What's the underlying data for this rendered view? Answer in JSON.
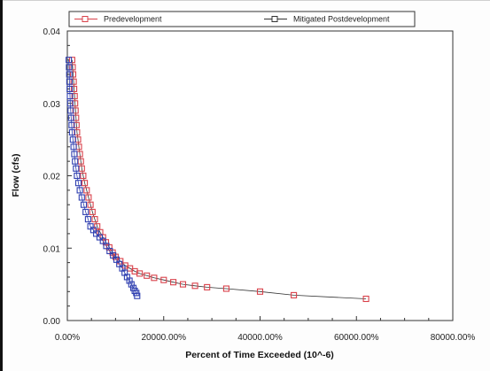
{
  "chart_data": {
    "type": "scatter",
    "xlabel": "Percent of Time Exceeded (10^-6)",
    "ylabel": "Flow (cfs)",
    "xlim": [
      0,
      80000
    ],
    "ylim": [
      0,
      0.04
    ],
    "x_ticks": [
      0,
      20000,
      40000,
      60000,
      80000
    ],
    "x_tick_labels": [
      "0.00%",
      "20000.00%",
      "40000.00%",
      "60000.00%",
      "80000.00%"
    ],
    "y_ticks": [
      0,
      0.01,
      0.02,
      0.03,
      0.04
    ],
    "y_tick_labels": [
      "0.00",
      "0.01",
      "0.02",
      "0.03",
      "0.04"
    ],
    "grid": false,
    "legend_position": "top",
    "series": [
      {
        "name": "Predevelopment",
        "color": "#d9414a",
        "marker": "open-square",
        "x": [
          1000,
          1100,
          1200,
          1300,
          1400,
          1500,
          1600,
          1700,
          1800,
          1900,
          2000,
          2200,
          2400,
          2600,
          2800,
          3000,
          3300,
          3600,
          4000,
          4400,
          4800,
          5200,
          5700,
          6200,
          6800,
          7400,
          8000,
          8700,
          9400,
          10000,
          11000,
          12000,
          13000,
          14000,
          15000,
          16500,
          18000,
          20000,
          22000,
          24000,
          26500,
          29000,
          33000,
          40000,
          47000,
          62000
        ],
        "y": [
          0.036,
          0.035,
          0.034,
          0.033,
          0.032,
          0.031,
          0.03,
          0.029,
          0.028,
          0.027,
          0.026,
          0.025,
          0.024,
          0.023,
          0.022,
          0.021,
          0.02,
          0.019,
          0.018,
          0.017,
          0.016,
          0.015,
          0.014,
          0.013,
          0.0122,
          0.0115,
          0.0108,
          0.0101,
          0.0094,
          0.0088,
          0.0082,
          0.0076,
          0.0072,
          0.0068,
          0.0065,
          0.0062,
          0.0059,
          0.0056,
          0.0053,
          0.005,
          0.0048,
          0.0046,
          0.0044,
          0.004,
          0.0035,
          0.003
        ]
      },
      {
        "name": "Mitigated Postdevelopment",
        "color": "#2f3fb0",
        "marker": "open-square",
        "x": [
          300,
          350,
          400,
          450,
          500,
          550,
          600,
          700,
          800,
          900,
          1000,
          1150,
          1300,
          1450,
          1600,
          1800,
          2000,
          2300,
          2600,
          3000,
          3400,
          3800,
          4300,
          4800,
          5400,
          6000,
          6700,
          7400,
          8100,
          8800,
          9500,
          10200,
          10800,
          11400,
          11900,
          12400,
          12900,
          13300,
          13700,
          14000,
          14300,
          14500
        ],
        "y": [
          0.036,
          0.035,
          0.034,
          0.033,
          0.032,
          0.031,
          0.03,
          0.029,
          0.028,
          0.027,
          0.026,
          0.025,
          0.024,
          0.023,
          0.022,
          0.021,
          0.02,
          0.019,
          0.018,
          0.017,
          0.016,
          0.015,
          0.014,
          0.013,
          0.0125,
          0.012,
          0.0115,
          0.011,
          0.0103,
          0.0096,
          0.009,
          0.0084,
          0.0078,
          0.0072,
          0.0066,
          0.006,
          0.0055,
          0.005,
          0.0045,
          0.0041,
          0.0038,
          0.0034
        ]
      }
    ]
  }
}
